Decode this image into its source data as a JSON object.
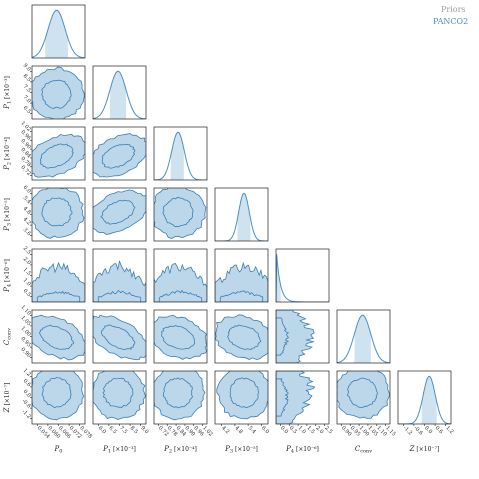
{
  "chart_data": {
    "type": "corner",
    "parameters": [
      {
        "id": "P0",
        "label": "P",
        "sub": "0",
        "sup": "",
        "scale": "",
        "range": [
          0.052,
          0.08
        ],
        "ticks": [
          "0.054",
          "0.060",
          "0.066",
          "0.072",
          "0.078"
        ],
        "prior_density": null,
        "posterior": {
          "mean": 0.065,
          "sd": 0.0045,
          "band": [
            0.059,
            0.071
          ]
        }
      },
      {
        "id": "P1",
        "label": "P",
        "sub": "1",
        "sup": "",
        "scale": "[×10⁻³]",
        "range": [
          5.6,
          9.2
        ],
        "ticks": [
          "6.0",
          "6.5",
          "7.5",
          "8.5",
          "9.0"
        ],
        "prior_density": "gaussian",
        "posterior": {
          "mean": 7.3,
          "sd": 0.55,
          "band": [
            6.75,
            7.85
          ]
        }
      },
      {
        "id": "P2",
        "label": "P",
        "sub": "2",
        "sup": "",
        "scale": "[×10⁻⁴]",
        "range": [
          0.7,
          1.02
        ],
        "ticks": [
          "0.72",
          "0.78",
          "0.84",
          "0.90",
          "0.96",
          "1.02"
        ],
        "prior_density": "gaussian",
        "posterior": {
          "mean": 0.845,
          "sd": 0.038,
          "band": [
            0.8,
            0.88
          ]
        }
      },
      {
        "id": "P3",
        "label": "P",
        "sub": "3",
        "sup": "",
        "scale": "[×10⁻⁵]",
        "range": [
          3.0,
          6.2
        ],
        "ticks": [
          "4.2",
          "4.8",
          "5.4",
          "6.0"
        ],
        "prior_density": "gaussian",
        "posterior": {
          "mean": 4.75,
          "sd": 0.32,
          "band": [
            4.35,
            5.15
          ]
        }
      },
      {
        "id": "P4",
        "label": "P",
        "sub": "4",
        "sup": "",
        "scale": "[×10⁻⁶]",
        "range": [
          0.0,
          2.5
        ],
        "ticks": [
          "0.0",
          "0.5",
          "1.0",
          "1.5",
          "2.0",
          "2.5"
        ],
        "prior_density": null,
        "posterior": {
          "mean": 0.1,
          "sd": 0.35,
          "band": [
            0.0,
            0.22
          ],
          "shape": "decay"
        }
      },
      {
        "id": "Cconv",
        "label": "C",
        "sub": "conv",
        "sup": "",
        "scale": "",
        "range": [
          0.86,
          1.15
        ],
        "ticks": [
          "0.90",
          "0.95",
          "1.00",
          "1.05",
          "1.10",
          "1.15"
        ],
        "prior_density": "gaussian",
        "posterior": {
          "mean": 1.0,
          "sd": 0.045,
          "band": [
            0.955,
            1.045
          ]
        }
      },
      {
        "id": "Z",
        "label": "Z",
        "sub": "",
        "sup": "",
        "scale": "[×10⁻⁷]",
        "range": [
          -1.5,
          1.3
        ],
        "ticks": [
          "-1.2",
          "-0.6",
          "0.0",
          "0.6",
          "1.2"
        ],
        "prior_density": "gaussian",
        "posterior": {
          "mean": 0.15,
          "sd": 0.32,
          "band": [
            -0.25,
            0.55
          ]
        }
      }
    ],
    "pair_correlation": {
      "1,0": -0.05,
      "2,0": 0.55,
      "2,1": 0.55,
      "3,0": 0.05,
      "3,1": 0.55,
      "3,2": 0.05,
      "4,0": -0.05,
      "4,1": 0.05,
      "4,2": 0.05,
      "4,3": -0.05,
      "5,0": -0.55,
      "5,1": -0.65,
      "5,2": -0.45,
      "5,3": -0.4,
      "5,4": -0.3,
      "6,0": 0.0,
      "6,1": 0.0,
      "6,2": 0.0,
      "6,3": 0.0,
      "6,4": -0.5,
      "6,5": 0.05
    },
    "y_tick_labels": {
      "P1": [
        "9.0",
        "8.5",
        "7.5",
        "7.0",
        "6.5"
      ],
      "P2": [
        "1.02",
        "0.96",
        "0.90",
        "0.84",
        "0.78",
        "0.72"
      ],
      "P3": [
        "6.0",
        "5.4",
        "4.8",
        "4.2",
        "3.6"
      ],
      "P4": [
        "2.5",
        "2.0",
        "1.5",
        "1.0",
        "0.5"
      ],
      "Cconv": [
        "1.10",
        "1.05",
        "1.00",
        "0.95",
        "0.90"
      ],
      "Z": [
        "1.2",
        "0.6",
        "0.0",
        "-0.6",
        "-1.2"
      ]
    },
    "legend": [
      {
        "name": "Priors",
        "color": "#9e9e9e"
      },
      {
        "name": "PANCO2",
        "color": "#4a8fc4"
      }
    ],
    "legend_position": "top-right",
    "grid": false,
    "colors": {
      "contour_fill": "#bcd7ea",
      "contour_line": "#3a7fb5",
      "band": "#cfe2f0",
      "prior": "#4a8fc4"
    }
  }
}
